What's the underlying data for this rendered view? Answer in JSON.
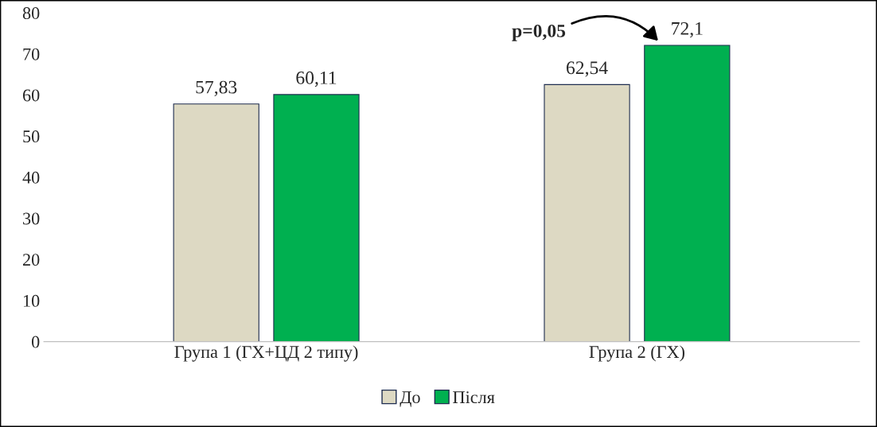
{
  "chart_data": {
    "type": "bar",
    "categories": [
      "Група 1 (ГХ+ЦД 2 типу)",
      "Група 2 (ГХ)"
    ],
    "series": [
      {
        "name": "До",
        "color": "#ddd9c3",
        "values": [
          57.83,
          62.54
        ],
        "value_labels": [
          "57,83",
          "62,54"
        ]
      },
      {
        "name": "Після",
        "color": "#00b050",
        "values": [
          60.11,
          72.1
        ],
        "value_labels": [
          "60,11",
          "72,1"
        ]
      }
    ],
    "ylim": [
      0,
      80
    ],
    "yticks": [
      0,
      10,
      20,
      30,
      40,
      50,
      60,
      70,
      80
    ],
    "legend": "bottom",
    "grid": false,
    "annotations": [
      "p=0,05"
    ]
  }
}
